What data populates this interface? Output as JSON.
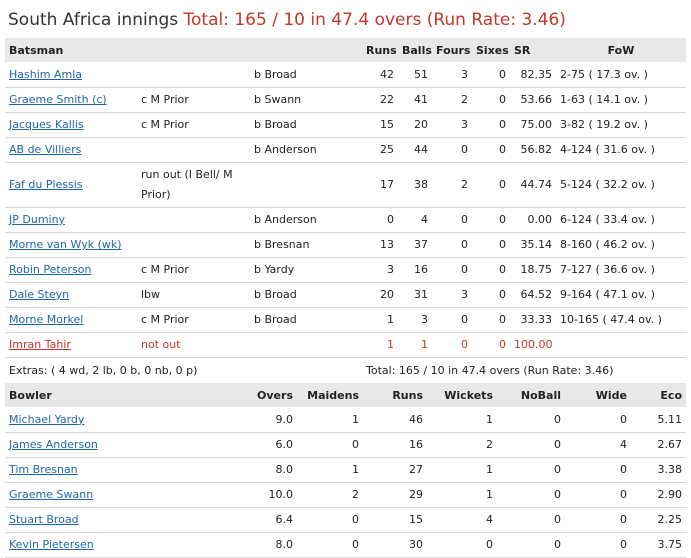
{
  "innings": {
    "team_label": "South Africa innings",
    "total_text": "Total: 165 / 10 in 47.4 overs (Run Rate: 3.46)"
  },
  "batting_headers": {
    "batsman": "Batsman",
    "runs": "Runs",
    "balls": "Balls",
    "fours": "Fours",
    "sixes": "Sixes",
    "sr": "SR",
    "fow": "FoW"
  },
  "batsmen": [
    {
      "name": "Hashim Amla",
      "dismissal_fielder": "",
      "dismissal_bowler": "b Broad",
      "runs": "42",
      "balls": "51",
      "fours": "3",
      "sixes": "0",
      "sr": "82.35",
      "fow": "2-75 ( 17.3 ov. )"
    },
    {
      "name": "Graeme Smith (c)",
      "dismissal_fielder": "c M Prior",
      "dismissal_bowler": "b Swann",
      "runs": "22",
      "balls": "41",
      "fours": "2",
      "sixes": "0",
      "sr": "53.66",
      "fow": "1-63 ( 14.1 ov. )"
    },
    {
      "name": "Jacques Kallis",
      "dismissal_fielder": "c M Prior",
      "dismissal_bowler": "b Broad",
      "runs": "15",
      "balls": "20",
      "fours": "3",
      "sixes": "0",
      "sr": "75.00",
      "fow": "3-82 ( 19.2 ov. )"
    },
    {
      "name": "AB de Villiers",
      "dismissal_fielder": "",
      "dismissal_bowler": "b Anderson",
      "runs": "25",
      "balls": "44",
      "fours": "0",
      "sixes": "0",
      "sr": "56.82",
      "fow": "4-124 ( 31.6 ov. )"
    },
    {
      "name": "Faf du Plessis",
      "dismissal_fielder": "run out (I Bell/ M Prior)",
      "dismissal_bowler": "",
      "runs": "17",
      "balls": "38",
      "fours": "2",
      "sixes": "0",
      "sr": "44.74",
      "fow": "5-124 ( 32.2 ov. )"
    },
    {
      "name": "JP Duminy",
      "dismissal_fielder": "",
      "dismissal_bowler": "b Anderson",
      "runs": "0",
      "balls": "4",
      "fours": "0",
      "sixes": "0",
      "sr": "0.00",
      "fow": "6-124 ( 33.4 ov. )"
    },
    {
      "name": "Morne van Wyk (wk)",
      "dismissal_fielder": "",
      "dismissal_bowler": "b Bresnan",
      "runs": "13",
      "balls": "37",
      "fours": "0",
      "sixes": "0",
      "sr": "35.14",
      "fow": "8-160 ( 46.2 ov. )"
    },
    {
      "name": "Robin Peterson",
      "dismissal_fielder": "c M Prior",
      "dismissal_bowler": "b Yardy",
      "runs": "3",
      "balls": "16",
      "fours": "0",
      "sixes": "0",
      "sr": "18.75",
      "fow": "7-127 ( 36.6 ov. )"
    },
    {
      "name": "Dale Steyn",
      "dismissal_fielder": "lbw",
      "dismissal_bowler": "b Broad",
      "runs": "20",
      "balls": "31",
      "fours": "3",
      "sixes": "0",
      "sr": "64.52",
      "fow": "9-164 ( 47.1 ov. )"
    },
    {
      "name": "Morne Morkel",
      "dismissal_fielder": "c M Prior",
      "dismissal_bowler": "b Broad",
      "runs": "1",
      "balls": "3",
      "fours": "0",
      "sixes": "0",
      "sr": "33.33",
      "fow": "10-165 ( 47.4 ov. )"
    },
    {
      "name": "Imran Tahir",
      "dismissal_fielder": "not out",
      "dismissal_bowler": "",
      "runs": "1",
      "balls": "1",
      "fours": "0",
      "sixes": "0",
      "sr": "100.00",
      "fow": "",
      "not_out": true
    }
  ],
  "extras": {
    "text": "Extras: ( 4 wd, 2 lb, 0 b, 0 nb, 0 p)",
    "total": "Total: 165 / 10 in 47.4 overs (Run Rate: 3.46)"
  },
  "bowling_headers": {
    "bowler": "Bowler",
    "overs": "Overs",
    "maidens": "Maidens",
    "runs": "Runs",
    "wickets": "Wickets",
    "noball": "NoBall",
    "wide": "Wide",
    "eco": "Eco"
  },
  "bowlers": [
    {
      "name": "Michael Yardy",
      "overs": "9.0",
      "maidens": "1",
      "runs": "46",
      "wickets": "1",
      "noball": "0",
      "wide": "0",
      "eco": "5.11"
    },
    {
      "name": "James Anderson",
      "overs": "6.0",
      "maidens": "0",
      "runs": "16",
      "wickets": "2",
      "noball": "0",
      "wide": "4",
      "eco": "2.67"
    },
    {
      "name": "Tim Bresnan",
      "overs": "8.0",
      "maidens": "1",
      "runs": "27",
      "wickets": "1",
      "noball": "0",
      "wide": "0",
      "eco": "3.38"
    },
    {
      "name": "Graeme Swann",
      "overs": "10.0",
      "maidens": "2",
      "runs": "29",
      "wickets": "1",
      "noball": "0",
      "wide": "0",
      "eco": "2.90"
    },
    {
      "name": "Stuart Broad",
      "overs": "6.4",
      "maidens": "0",
      "runs": "15",
      "wickets": "4",
      "noball": "0",
      "wide": "0",
      "eco": "2.25"
    },
    {
      "name": "Kevin Pietersen",
      "overs": "8.0",
      "maidens": "0",
      "runs": "30",
      "wickets": "0",
      "noball": "0",
      "wide": "0",
      "eco": "3.75"
    }
  ]
}
